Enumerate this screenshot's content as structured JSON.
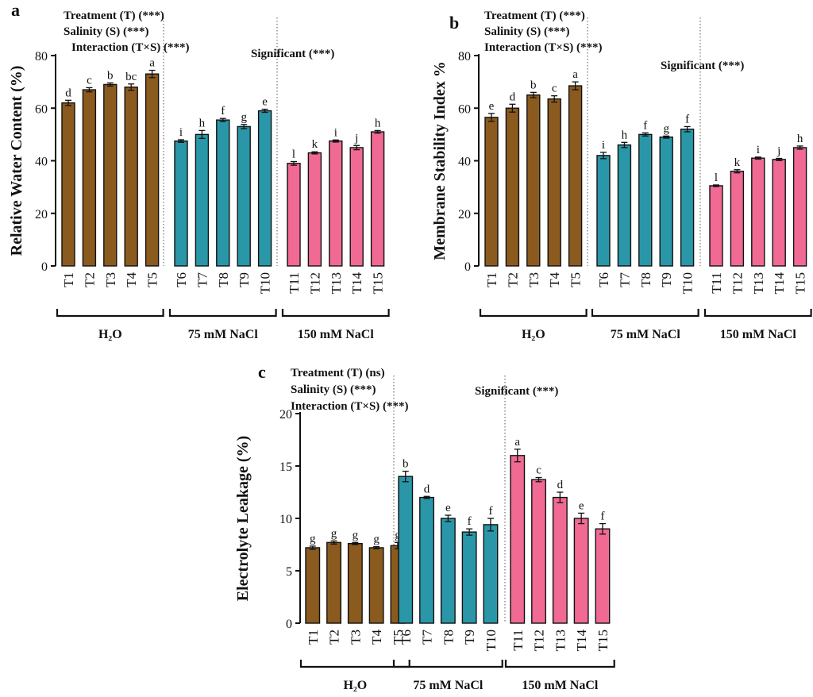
{
  "colors": {
    "H2O": "#8B5A1E",
    "75 mM NaCl": "#2A97A8",
    "150 mM NaCl": "#F06A93"
  },
  "chart_data": [
    {
      "type": "bar",
      "panel": "a",
      "ylabel": "Relative Water Content (%)",
      "ylim": [
        0,
        80
      ],
      "yticks": [
        0,
        20,
        40,
        60,
        80
      ],
      "stats": [
        "Treatment (T) (***)",
        "Salinity (S) (***)",
        "Interaction (T×S) (***)"
      ],
      "significance_note": "Significant (***)",
      "groups": [
        {
          "label": "H₂O",
          "color_key": "H2O",
          "categories": [
            "T1",
            "T2",
            "T3",
            "T4",
            "T5"
          ],
          "values": [
            62,
            67,
            69,
            68,
            73
          ],
          "errors": [
            1.0,
            0.8,
            0.6,
            1.2,
            1.4
          ],
          "letters": [
            "d",
            "c",
            "b",
            "bc",
            "a"
          ]
        },
        {
          "label": "75 mM NaCl",
          "color_key": "75 mM NaCl",
          "categories": [
            "T6",
            "T7",
            "T8",
            "T9",
            "T10"
          ],
          "values": [
            47.5,
            50,
            55.5,
            53,
            59
          ],
          "errors": [
            0.5,
            1.5,
            0.6,
            0.8,
            0.6
          ],
          "letters": [
            "i",
            "h",
            "f",
            "g",
            "e"
          ]
        },
        {
          "label": "150 mM NaCl",
          "color_key": "150 mM NaCl",
          "categories": [
            "T11",
            "T12",
            "T13",
            "T14",
            "T15"
          ],
          "values": [
            39,
            43,
            47.5,
            45,
            51
          ],
          "errors": [
            0.7,
            0.4,
            0.4,
            0.8,
            0.5
          ],
          "letters": [
            "l",
            "k",
            "i",
            "j",
            "h"
          ]
        }
      ]
    },
    {
      "type": "bar",
      "panel": "b",
      "ylabel": "Membrane Stability Index %",
      "ylim": [
        0,
        80
      ],
      "yticks": [
        0,
        20,
        40,
        60,
        80
      ],
      "stats": [
        "Treatment (T) (***)",
        "Salinity (S) (***)",
        "Interaction (T×S) (***)"
      ],
      "significance_note": "Significant (***)",
      "groups": [
        {
          "label": "H₂O",
          "color_key": "H2O",
          "categories": [
            "T1",
            "T2",
            "T3",
            "T4",
            "T5"
          ],
          "values": [
            56.5,
            60,
            65,
            63.5,
            68.5
          ],
          "errors": [
            1.5,
            1.5,
            1.0,
            1.2,
            1.5
          ],
          "letters": [
            "e",
            "d",
            "b",
            "c",
            "a"
          ]
        },
        {
          "label": "75 mM NaCl",
          "color_key": "75 mM NaCl",
          "categories": [
            "T6",
            "T7",
            "T8",
            "T9",
            "T10"
          ],
          "values": [
            42,
            46,
            50,
            49,
            52
          ],
          "errors": [
            1.2,
            1.0,
            0.6,
            0.4,
            1.0
          ],
          "letters": [
            "i",
            "h",
            "f",
            "g",
            "f"
          ]
        },
        {
          "label": "150 mM NaCl",
          "color_key": "150 mM NaCl",
          "categories": [
            "T11",
            "T12",
            "T13",
            "T14",
            "T15"
          ],
          "values": [
            30.5,
            36,
            41,
            40.5,
            45
          ],
          "errors": [
            0.3,
            0.6,
            0.4,
            0.4,
            0.6
          ],
          "letters": [
            "l",
            "k",
            "i",
            "j",
            "h"
          ]
        }
      ]
    },
    {
      "type": "bar",
      "panel": "c",
      "ylabel": "Electrolyte Leakage (%)",
      "ylim": [
        0,
        20
      ],
      "yticks": [
        0,
        5,
        10,
        15,
        20
      ],
      "stats": [
        "Treatment (T) (ns)",
        "Salinity (S) (***)",
        "Interaction (T×S) (***)"
      ],
      "significance_note": "Significant (***)",
      "groups": [
        {
          "label": "H₂O",
          "color_key": "H2O",
          "categories": [
            "T1",
            "T2",
            "T3",
            "T4",
            "T5"
          ],
          "values": [
            7.2,
            7.7,
            7.6,
            7.2,
            7.4
          ],
          "errors": [
            0.15,
            0.15,
            0.1,
            0.1,
            0.3
          ],
          "letters": [
            "g",
            "g",
            "g",
            "g",
            "g"
          ]
        },
        {
          "label": "75 mM NaCl",
          "color_key": "75 mM NaCl",
          "categories": [
            "T6",
            "T7",
            "T8",
            "T9",
            "T10"
          ],
          "values": [
            14,
            12,
            10,
            8.7,
            9.4
          ],
          "errors": [
            0.5,
            0.1,
            0.3,
            0.3,
            0.6
          ],
          "letters": [
            "b",
            "d",
            "e",
            "f",
            "f"
          ]
        },
        {
          "label": "150 mM NaCl",
          "color_key": "150 mM NaCl",
          "categories": [
            "T11",
            "T12",
            "T13",
            "T14",
            "T15"
          ],
          "values": [
            16,
            13.7,
            12,
            10,
            9
          ],
          "errors": [
            0.6,
            0.2,
            0.5,
            0.5,
            0.5
          ],
          "letters": [
            "a",
            "c",
            "d",
            "e",
            "f"
          ]
        }
      ]
    }
  ]
}
